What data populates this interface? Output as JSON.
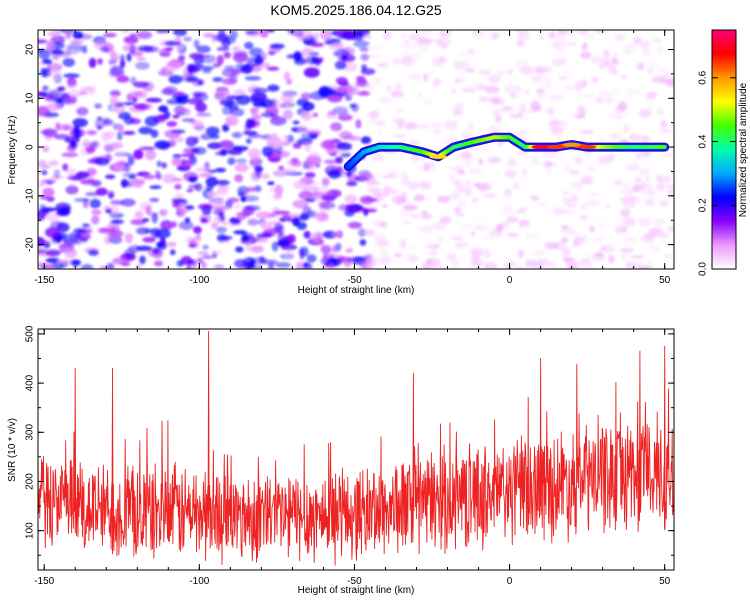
{
  "title": "KOM5.2025.186.04.12.G25",
  "colors": {
    "snr_line": "#ee2222",
    "ridge_purple": "#7a2bff",
    "noise_purple": "#6a0fe0",
    "background": "#ffffff"
  },
  "chart_data": [
    {
      "type": "heatmap",
      "name": "spectrogram",
      "title": "KOM5.2025.186.04.12.G25",
      "xlabel": "Height of straight line (km)",
      "ylabel": "Frequency (Hz)",
      "xlim": [
        -152,
        53
      ],
      "ylim": [
        -25,
        24
      ],
      "xticks": [
        -150,
        -100,
        -50,
        0,
        50
      ],
      "xtick_labels": [
        "-150",
        "-100",
        "-50",
        "0",
        "50"
      ],
      "yticks": [
        20,
        10,
        0,
        -10,
        -20
      ],
      "ytick_labels": [
        "20",
        "10",
        "0",
        "-10",
        "-20"
      ],
      "colorbar": {
        "label": "Normalized spectral amplitude",
        "range": [
          0,
          0.75
        ],
        "ticks": [
          0.0,
          0.2,
          0.4,
          0.6
        ],
        "tick_labels": [
          "0.0",
          "0.2",
          "0.4",
          "0.6"
        ],
        "colormap": [
          "#ffffff",
          "#ee99ff",
          "#8800ff",
          "#0000ff",
          "#00aaff",
          "#00ffaa",
          "#44ff00",
          "#ffff00",
          "#ff9900",
          "#ff0000",
          "#ff0077"
        ]
      },
      "ridge": {
        "x": [
          -52,
          -47,
          -42,
          -35,
          -28,
          -23,
          -18,
          -12,
          -5,
          0,
          5,
          10,
          15,
          20,
          25,
          30,
          35,
          40,
          45,
          50
        ],
        "y": [
          -4,
          -1,
          0,
          0,
          -1,
          -2,
          0,
          1,
          2,
          2,
          0,
          0,
          0,
          0.5,
          0,
          0,
          0,
          0,
          0,
          0
        ],
        "amplitude": [
          0.25,
          0.3,
          0.35,
          0.4,
          0.45,
          0.55,
          0.4,
          0.45,
          0.5,
          0.45,
          0.4,
          0.7,
          0.65,
          0.6,
          0.65,
          0.5,
          0.45,
          0.4,
          0.42,
          0.45
        ]
      },
      "noise_level_left": 0.2,
      "noise_level_right": 0.05
    },
    {
      "type": "line",
      "name": "snr",
      "xlabel": "Height of straight line (km)",
      "ylabel": "SNR (10 * v/v)",
      "xlim": [
        -152,
        53
      ],
      "ylim": [
        20,
        510
      ],
      "xticks": [
        -150,
        -100,
        -50,
        0,
        50
      ],
      "xtick_labels": [
        "-150",
        "-100",
        "-50",
        "0",
        "50"
      ],
      "yticks": [
        500,
        400,
        300,
        200,
        100
      ],
      "ytick_labels": [
        "500",
        "400",
        "300",
        "200",
        "100"
      ],
      "series": [
        {
          "x": [
            -152,
            -140,
            -130,
            -120,
            -110,
            -100,
            -90,
            -80,
            -70,
            -60,
            -50,
            -40,
            -30,
            -20,
            -10,
            0,
            10,
            20,
            30,
            40,
            50,
            53
          ],
          "mean": [
            160,
            150,
            140,
            135,
            140,
            135,
            130,
            130,
            130,
            130,
            135,
            145,
            155,
            165,
            170,
            180,
            190,
            200,
            210,
            220,
            215,
            215
          ],
          "spread": [
            110,
            110,
            110,
            110,
            110,
            110,
            105,
            105,
            105,
            105,
            105,
            110,
            115,
            120,
            120,
            125,
            125,
            130,
            130,
            135,
            135,
            135
          ]
        }
      ],
      "peaks": [
        {
          "x": -97,
          "y": 505
        },
        {
          "x": -140,
          "y": 430
        },
        {
          "x": -128,
          "y": 430
        },
        {
          "x": 50,
          "y": 475
        },
        {
          "x": 42,
          "y": 465
        },
        {
          "x": 10,
          "y": 450
        },
        {
          "x": -31,
          "y": 420
        }
      ]
    }
  ]
}
